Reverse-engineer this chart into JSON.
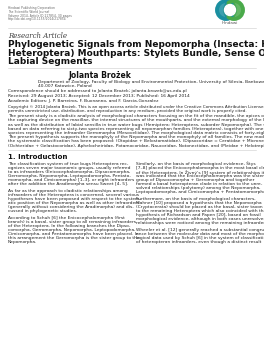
{
  "publisher_lines": [
    "Hindawi Publishing Corporation",
    "The Scientific World Journal",
    "Volume 2014, Article ID 217854, 30 pages",
    "http://dx.doi.org/10.1155/2014/217854"
  ],
  "research_article_label": "Research Article",
  "title_line1": "Phylogenetic Signals from Nepomorpha (Insecta: Hemiptera:",
  "title_line2": "Heteroptera) Mouthparts: Stylets Bundle, Sense Organs, and",
  "title_line3": "Labial Segments",
  "author": "Jolanta Brożek",
  "affil1": "Department of Zoology, Faculty of Biology and Environmental Protection, University of Silesia, Bankowa Street 9,",
  "affil2": "40-007 Katowice, Poland",
  "correspondence": "Correspondence should be addressed to Jolanta Brożek; jolanta.brozek@us.edu.pl",
  "received": "Received: 29 August 2013; Accepted: 12 December 2013; Published: 16 April 2014",
  "editors": "Academic Editors: J. P. Barreiros, F. Buonanno, and F. Garcia-Gonzalez",
  "copyright1": "Copyright © 2014 Jolanta Brożek. This is an open access article distributed under the Creative Commons Attribution License, which",
  "copyright2": "permits unrestricted use, distribution, and reproduction in any medium, provided the original work is properly cited.",
  "abstract_lines": [
    "The present study is a cladistic analysis of morphological characters focusing on the fit of the mandible, the apices of the maxillae,",
    "the capturing device on the maxillae, the internal structures of the mouthparts, and the external morphology of the labial segments",
    "as well as the distribution of labial sensilla in true water bugs (Hemiptera: Heteroptera, suborder Nepomorpha). The study is",
    "based on data referring to sixty-two species representing all nepomorphan families (Heteroptera), together with one outgroup",
    "species representing the infraorder Gerromorpha (Mesoveliidae). The morphological data matrix consists of forty-eight characters.",
    "The present hypothesis supports the monophyly of the Nepomorpha and the monophyly of all families. The new modification in",
    "the systematic classification has been proposed: (Otopidae + Belostomatidae), (Dipsocoridae = Ceratidae + Microneotidae),",
    "(Ochteridae + Gelastocoridae), Aphelocheiridae, Potamocoridae, Naucoridae, Notonectidae, and (Pleidae + Helotrephidae)."
  ],
  "intro_heading": "1. Introduction",
  "col1_lines": [
    "The classification system of true bugs Heteroptera rec-",
    "ognizes seven major taxonomic groups, usually referred",
    "to as infraorders (Enicocephalomorpha, Dipsocomorpha,",
    "Gerromorpha, Nepomorpha, Leptopodomorpha, Pentato-",
    "momorpha, and Cimicomorpha) [1–3], or eight infraorders",
    "after the addition the Aradimorpha sensu Sweet [4, 5].",
    "",
    "As far as the approach to cladistic relationships among",
    "infraorders of the Heteroptera is concerned, several various",
    "hypotheses have been proposed with respect to the system-",
    "atic position of the Nepomorpha as well as other infraorders",
    "(generally without considering the Aradimorpha) and dis-",
    "cussed in phylogenetic studies.",
    "",
    "According to Schuh [6] the Enicocephalomorpha (first",
    "branch) is a basal, sister group to all remaining infraorders",
    "of the Heteroptera. In the following branches the Dipso-",
    "comorpha, Gerromorpha, Nepomorpha, Leptopodomorpha,",
    "Cimicomorpha, and Pentatomomorphs have been placed. In",
    "this arrangement the Gerromorpha is the sister group to the",
    "Nepomorpha."
  ],
  "col2_lines": [
    "Similarly, on the basis of morphological evidence, Štys",
    "[7–8] placed the Enicocephalomorpha in the most basal clade",
    "of the Heteroptera. In Živný’s [9] system of relationships it",
    "was indicated that the Enicocephalomorpha was the sister",
    "group of Dipsocomorpha + Gerromorpha and together",
    "formed a basal heteropteran clade in relation to the unre-",
    "solved relationships (polytomy) among the Nepomorpha,",
    "Leptopodomorpha, and Cimicomorpha + Pentatomomorpha.",
    "",
    "Furthermore, on the basis of morphological characters,",
    "Mahner [10] proposed a hypothesis that the Nepomorpha",
    "(Cryptocerata) should be placed as the basal, sister taxon",
    "to the remaining Heteroptera which also coincided with the",
    "hypothesis of Richardson and Papen [20], based on fossil",
    "morphological evidence, although in both cases unresolved",
    "relationships were noticed among the remaining infraorders.",
    "",
    "Wheeler et al. [12] generally reached a substantial congru-",
    "ence between the molecular data and most of the morpho-",
    "logical data used by Schuh [6] in the system of classification",
    "of heteropteran infraorders, even though a distinct result"
  ],
  "bg_color": "#ffffff",
  "gray_text": "#666666",
  "dark_text": "#222222",
  "black_text": "#111111",
  "line_color": "#cccccc",
  "hindawi_teal": "#1a8fa0",
  "hindawi_green": "#4aaa4a"
}
